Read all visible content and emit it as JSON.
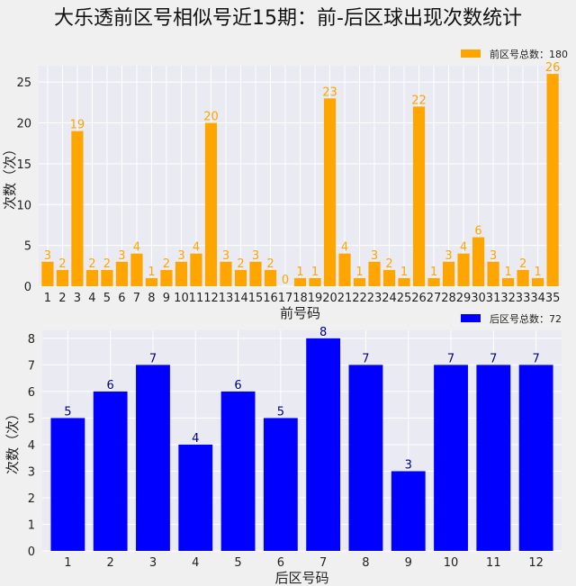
{
  "figure_title": "大乐透前区号相似号近15期：前-后区球出现次数统计",
  "chart_data": [
    {
      "type": "bar",
      "categories": [
        "1",
        "2",
        "3",
        "4",
        "5",
        "6",
        "7",
        "8",
        "9",
        "10",
        "11",
        "12",
        "13",
        "14",
        "15",
        "16",
        "17",
        "18",
        "19",
        "20",
        "21",
        "22",
        "23",
        "24",
        "25",
        "26",
        "27",
        "28",
        "29",
        "30",
        "31",
        "32",
        "33",
        "34",
        "35"
      ],
      "values": [
        3,
        2,
        19,
        2,
        2,
        3,
        4,
        1,
        2,
        3,
        4,
        20,
        3,
        2,
        3,
        2,
        0,
        1,
        1,
        23,
        4,
        1,
        3,
        2,
        1,
        22,
        1,
        3,
        4,
        6,
        3,
        1,
        2,
        1,
        26
      ],
      "series_name": "前区号总数：180",
      "xlabel": "前号码",
      "ylabel": "次数（次）",
      "ylim": [
        0,
        27
      ],
      "yticks": [
        0,
        5,
        10,
        15,
        20,
        25
      ],
      "grid": true,
      "legend": "top-right",
      "color": "#FFA500"
    },
    {
      "type": "bar",
      "categories": [
        "1",
        "2",
        "3",
        "4",
        "5",
        "6",
        "7",
        "8",
        "9",
        "10",
        "11",
        "12"
      ],
      "values": [
        5,
        6,
        7,
        4,
        6,
        5,
        8,
        7,
        3,
        7,
        7,
        7
      ],
      "series_name": "后区号总数：72",
      "xlabel": "后区号码",
      "ylabel": "次数（次）",
      "ylim": [
        0,
        8.3
      ],
      "yticks": [
        0,
        1,
        2,
        3,
        4,
        5,
        6,
        7,
        8
      ],
      "grid": true,
      "legend": "top-right",
      "color": "#0000FF",
      "label_color": "#00008B"
    }
  ]
}
